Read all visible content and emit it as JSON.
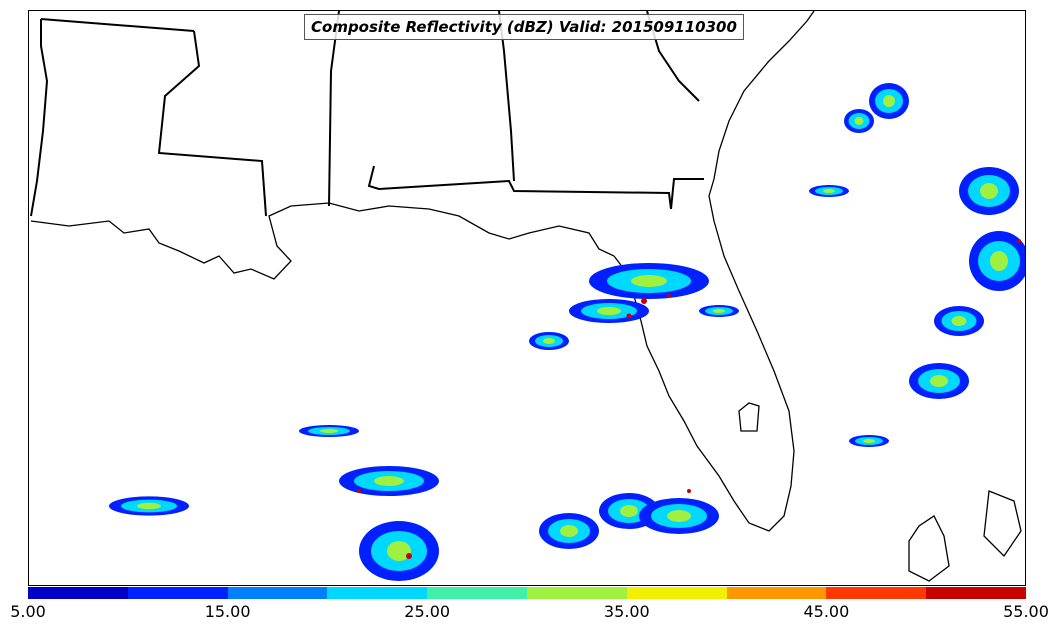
{
  "title": "Composite Reflectivity (dBZ) Valid: 201509110300",
  "colorbar": {
    "colors": [
      "#0000c8",
      "#0020ff",
      "#0080ff",
      "#00d8ff",
      "#40f0a8",
      "#a0f040",
      "#f0f000",
      "#ff9800",
      "#ff3800",
      "#c80000"
    ],
    "tick_labels": [
      "5.00",
      "15.00",
      "25.00",
      "35.00",
      "45.00",
      "55.00"
    ],
    "range": [
      5,
      55
    ],
    "units": "dBZ"
  },
  "map": {
    "region": "Gulf of Mexico and southeastern United States",
    "features": [
      "state-borders",
      "coastlines",
      "radar-reflectivity-echoes"
    ]
  }
}
